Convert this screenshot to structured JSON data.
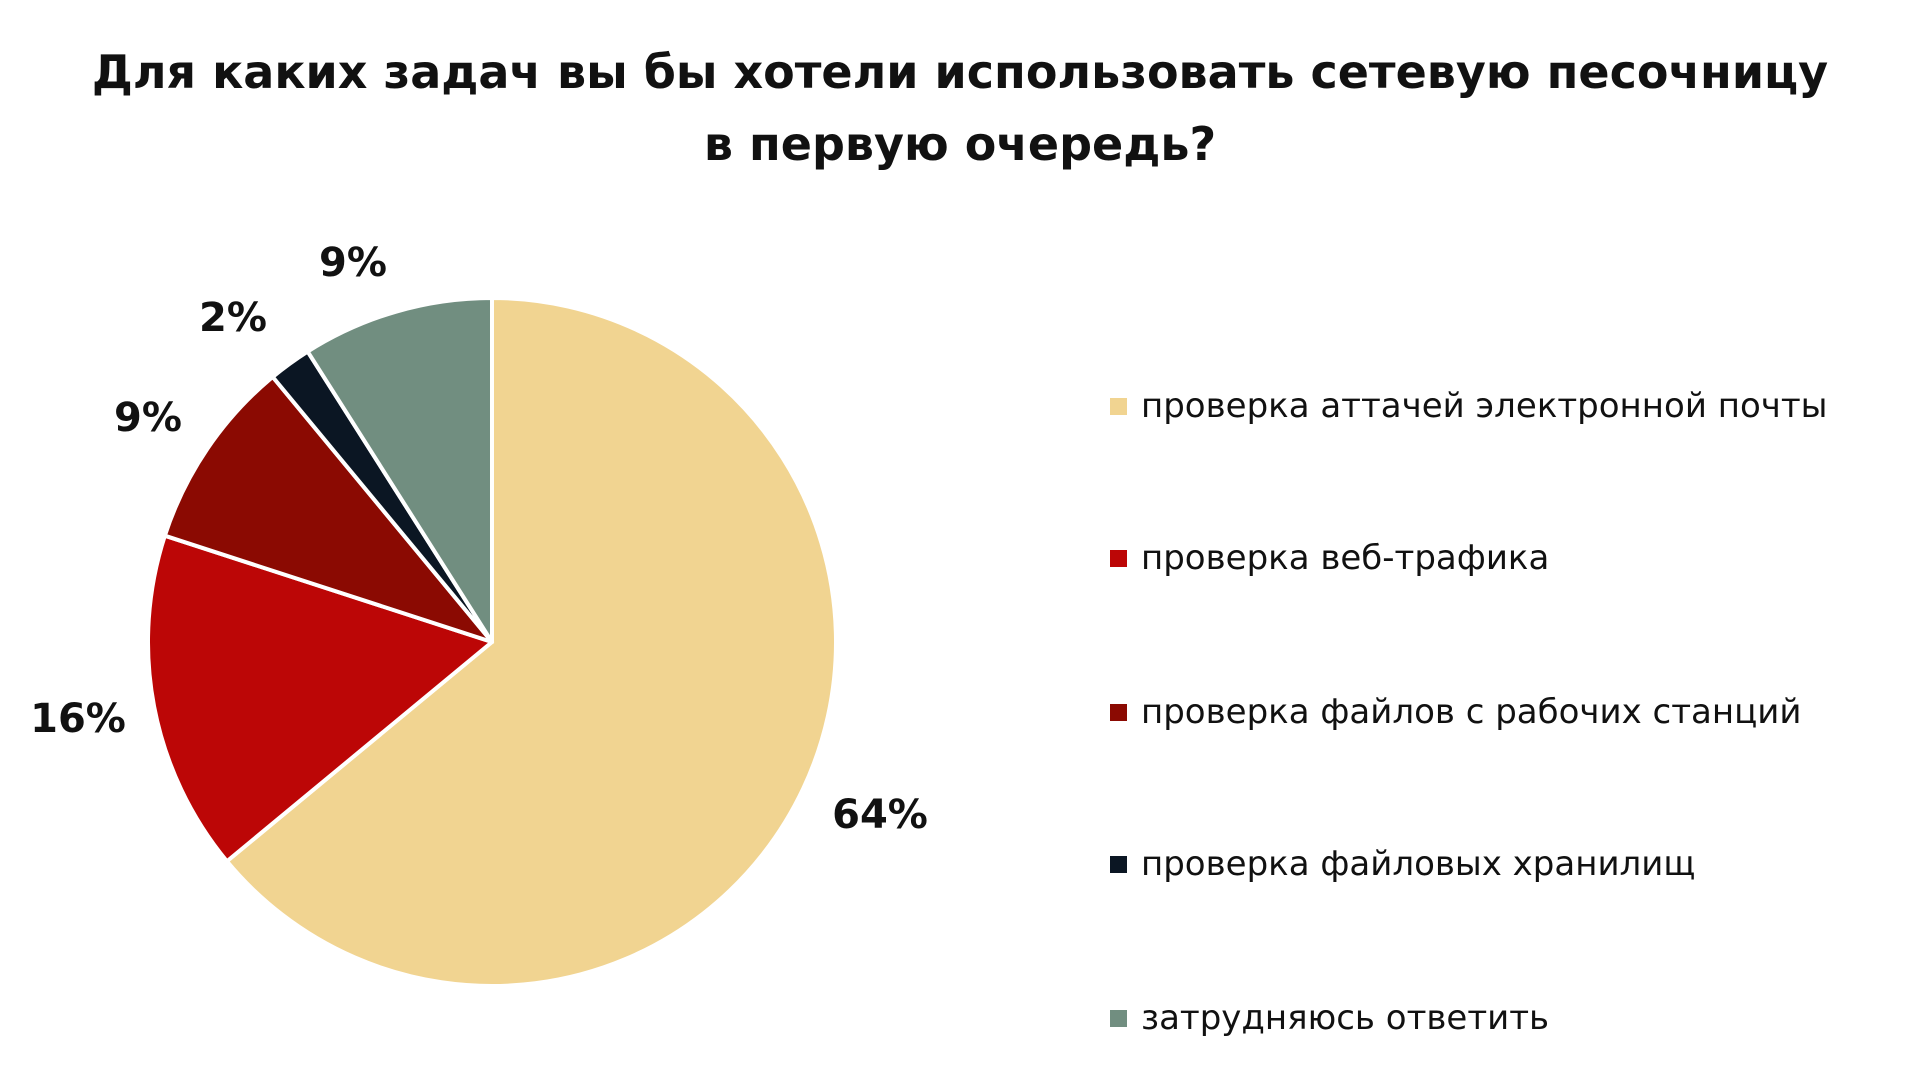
{
  "chart_data": {
    "type": "pie",
    "title": [
      "Для каких задач вы бы хотели использовать сетевую песочницу",
      "в первую очередь?"
    ],
    "slices": [
      {
        "name": "проверка аттачей электронной почты",
        "value": 64,
        "label": "64%",
        "color": "#F1D491"
      },
      {
        "name": "проверка веб-трафика",
        "value": 16,
        "label": "16%",
        "color": "#BC0606"
      },
      {
        "name": "проверка файлов с рабочих станций",
        "value": 9,
        "label": "9%",
        "color": "#8B0A02"
      },
      {
        "name": "проверка файловых хранилищ",
        "value": 2,
        "label": "2%",
        "color": "#0B1623"
      },
      {
        "name": "затрудняюсь ответить",
        "value": 9,
        "label": "9%",
        "color": "#718E80"
      }
    ],
    "start": "top",
    "direction": "clockwise",
    "legend_position": "right"
  }
}
